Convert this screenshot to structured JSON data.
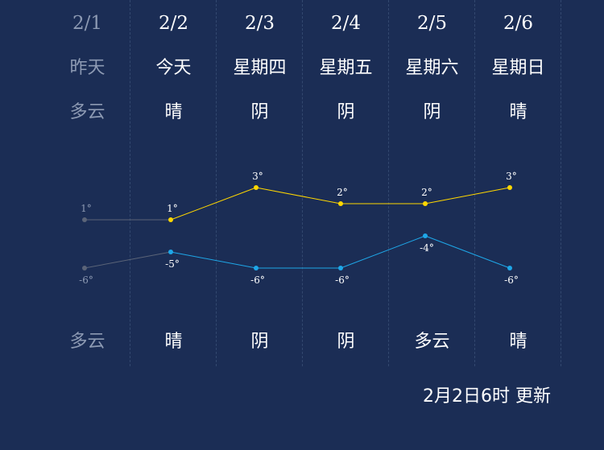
{
  "days": [
    {
      "date": "2/1",
      "label": "昨天",
      "weather_day": "多云",
      "weather_night": "多云",
      "high": "1°",
      "low": "-6°"
    },
    {
      "date": "2/2",
      "label": "今天",
      "weather_day": "晴",
      "weather_night": "晴",
      "high": "1°",
      "low": "-5°"
    },
    {
      "date": "2/3",
      "label": "星期四",
      "weather_day": "阴",
      "weather_night": "阴",
      "high": "3°",
      "low": "-6°"
    },
    {
      "date": "2/4",
      "label": "星期五",
      "weather_day": "阴",
      "weather_night": "阴",
      "high": "2°",
      "low": "-6°"
    },
    {
      "date": "2/5",
      "label": "星期六",
      "weather_day": "阴",
      "weather_night": "多云",
      "high": "2°",
      "low": "-4°"
    },
    {
      "date": "2/6",
      "label": "星期日",
      "weather_day": "晴",
      "weather_night": "晴",
      "high": "3°",
      "low": "-6°"
    }
  ],
  "update_time": "2月2日6时 更新",
  "chart_data": {
    "type": "line",
    "categories": [
      "2/1",
      "2/2",
      "2/3",
      "2/4",
      "2/5",
      "2/6"
    ],
    "series": [
      {
        "values": [
          1,
          1,
          3,
          2,
          2,
          3
        ],
        "color": "#ffd700"
      },
      {
        "values": [
          -6,
          -5,
          -6,
          -6,
          -4,
          -6
        ],
        "color": "#1ea7e8"
      }
    ],
    "past_color": "#5b6478"
  }
}
